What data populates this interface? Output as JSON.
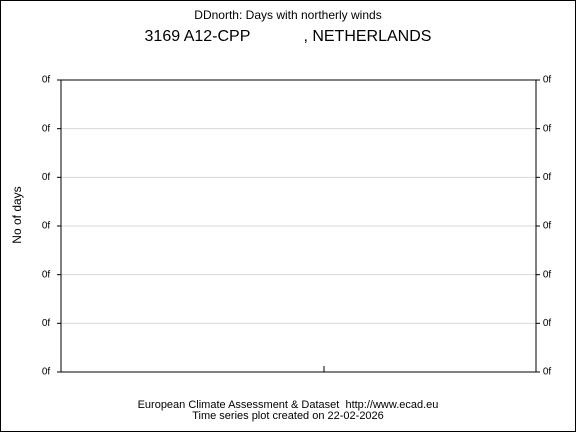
{
  "chart_data": {
    "type": "line",
    "title": "DDnorth: Days with northerly winds",
    "subtitle": "3169 A12-CPP            , NETHERLANDS",
    "y_label": "No of days",
    "footer": [
      "European Climate Assessment & Dataset  http://www.ecad.eu",
      "Time series plot created on 22-02-2026"
    ],
    "series": [],
    "ylim": [
      0,
      6
    ],
    "yticks": [
      {
        "value": 0,
        "label": "0f"
      },
      {
        "value": 1,
        "label": "0f"
      },
      {
        "value": 2,
        "label": "0f"
      },
      {
        "value": 3,
        "label": "0f"
      },
      {
        "value": 4,
        "label": "0f"
      },
      {
        "value": 5,
        "label": "0f"
      },
      {
        "value": 6,
        "label": "0f"
      }
    ],
    "grid": true
  }
}
